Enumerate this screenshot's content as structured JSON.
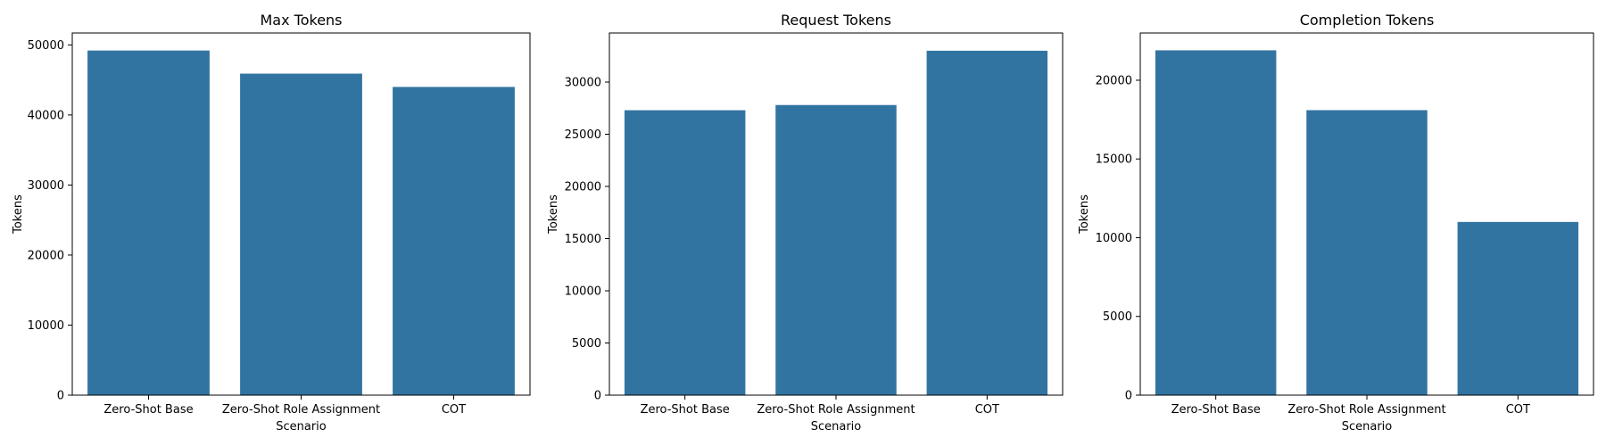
{
  "colors": {
    "bar": "#3274a1",
    "axis": "#000000",
    "background": "#ffffff"
  },
  "chart_data": [
    {
      "type": "bar",
      "title": "Max Tokens",
      "xlabel": "Scenario",
      "ylabel": "Tokens",
      "categories": [
        "Zero-Shot Base",
        "Zero-Shot Role Assignment",
        "COT"
      ],
      "values": [
        49200,
        45900,
        44000
      ],
      "ylim": [
        0,
        51700
      ],
      "yticks": [
        0,
        10000,
        20000,
        30000,
        40000,
        50000
      ],
      "grid": false,
      "legend": "none"
    },
    {
      "type": "bar",
      "title": "Request Tokens",
      "xlabel": "Scenario",
      "ylabel": "Tokens",
      "categories": [
        "Zero-Shot Base",
        "Zero-Shot Role Assignment",
        "COT"
      ],
      "values": [
        27300,
        27800,
        33000
      ],
      "ylim": [
        0,
        34700
      ],
      "yticks": [
        0,
        5000,
        10000,
        15000,
        20000,
        25000,
        30000
      ],
      "grid": false,
      "legend": "none"
    },
    {
      "type": "bar",
      "title": "Completion Tokens",
      "xlabel": "Scenario",
      "ylabel": "Tokens",
      "categories": [
        "Zero-Shot Base",
        "Zero-Shot Role Assignment",
        "COT"
      ],
      "values": [
        21900,
        18100,
        11000
      ],
      "ylim": [
        0,
        23000
      ],
      "yticks": [
        0,
        5000,
        10000,
        15000,
        20000
      ],
      "grid": false,
      "legend": "none"
    }
  ]
}
